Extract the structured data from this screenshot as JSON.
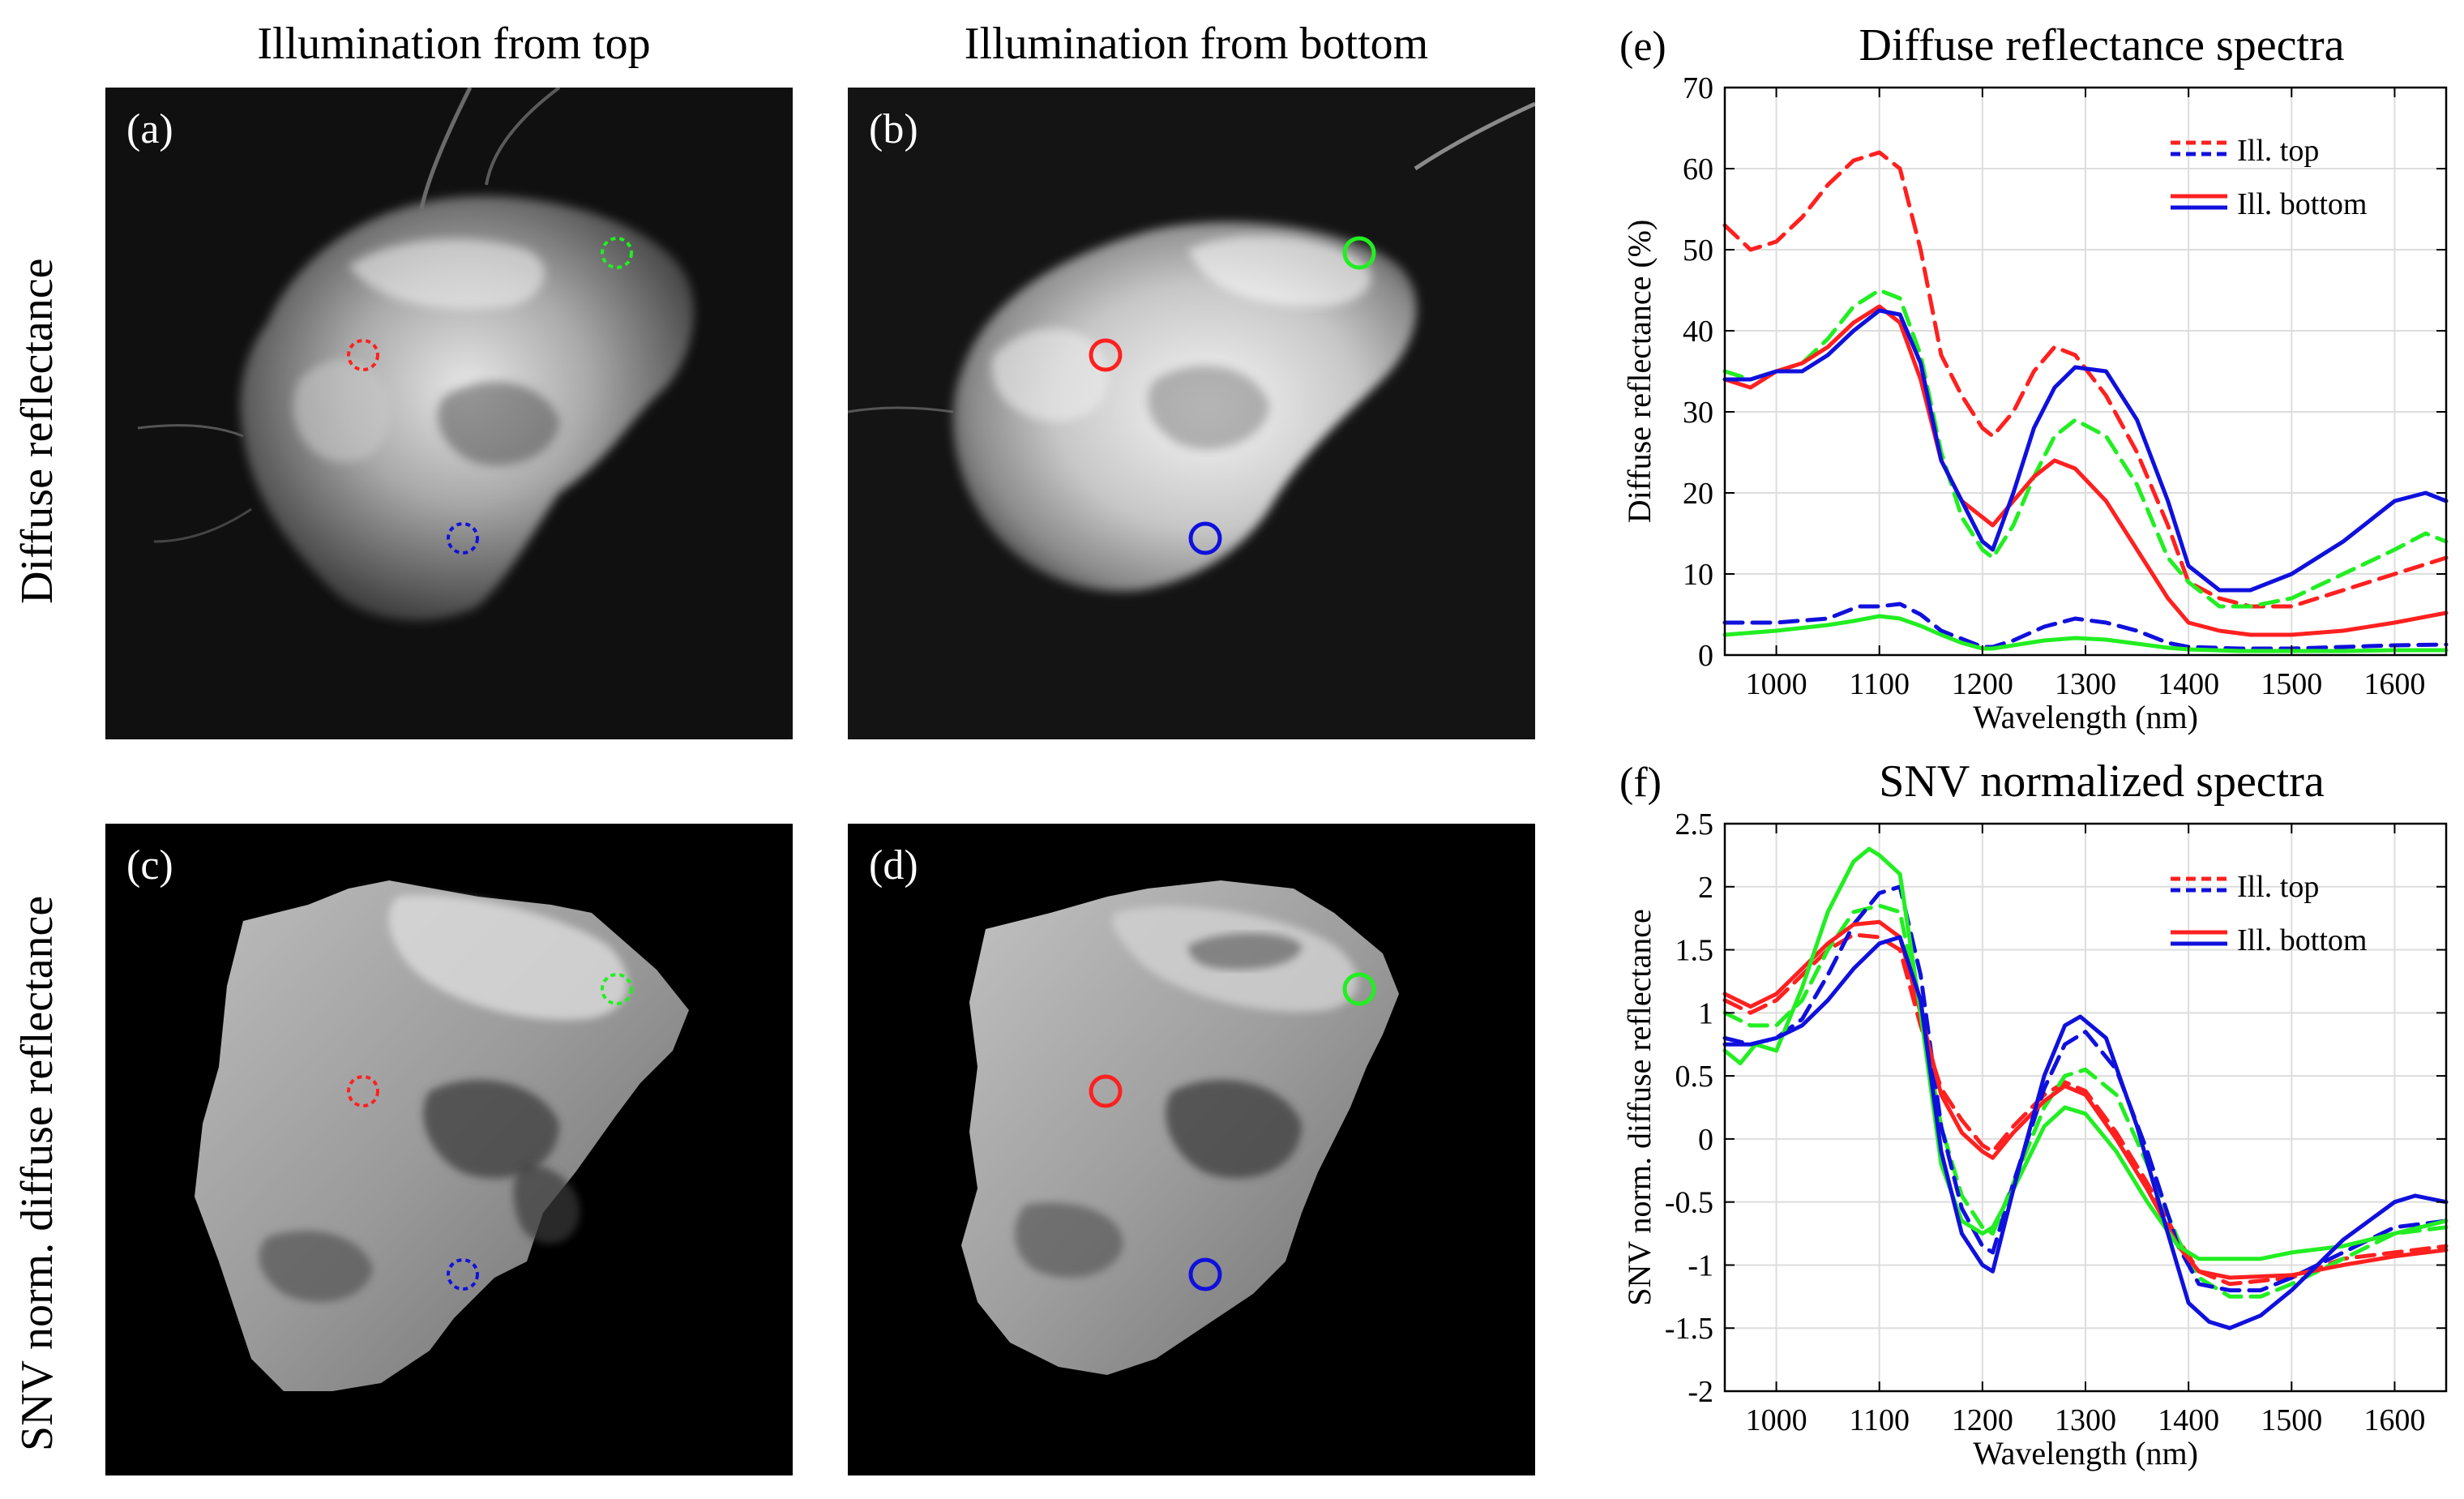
{
  "column_titles": {
    "top": "Illumination from top",
    "bottom": "Illumination from bottom"
  },
  "row_labels": {
    "diffuse": "Diffuse reflectance",
    "snv": "SNV norm. diffuse reflectance"
  },
  "panels": {
    "a": "(a)",
    "b": "(b)",
    "c": "(c)",
    "d": "(d)"
  },
  "colors": {
    "red": "#ff2020",
    "green": "#22ee22",
    "blue": "#1010dd"
  },
  "chart_data": [
    {
      "type": "line",
      "panel_label": "(e)",
      "title": "Diffuse reflectance spectra",
      "xlabel": "Wavelength (nm)",
      "ylabel": "Diffuse reflectance (%)",
      "xlim": [
        950,
        1650
      ],
      "ylim": [
        0,
        70
      ],
      "xticks": [
        1000,
        1100,
        1200,
        1300,
        1400,
        1500,
        1600
      ],
      "yticks": [
        0,
        10,
        20,
        30,
        40,
        50,
        60,
        70
      ],
      "ytick_labels": [
        "0",
        "10",
        "20",
        "30",
        "40",
        "50",
        "60",
        "70"
      ],
      "grid": true,
      "legend": {
        "position": "top-right",
        "entries": [
          "Ill. top",
          "Ill. bottom"
        ]
      },
      "series": [
        {
          "name": "Red, Ill. top",
          "color": "red",
          "dash": true,
          "x": [
            950,
            975,
            1000,
            1025,
            1050,
            1075,
            1100,
            1120,
            1140,
            1160,
            1180,
            1200,
            1210,
            1230,
            1250,
            1270,
            1290,
            1320,
            1350,
            1380,
            1400,
            1430,
            1460,
            1500,
            1550,
            1600,
            1650
          ],
          "y": [
            53,
            50,
            51,
            54,
            58,
            61,
            62,
            60,
            50,
            37,
            32,
            28,
            27,
            30,
            35,
            38,
            37,
            32,
            25,
            16,
            9,
            7,
            6,
            6,
            8,
            10,
            12
          ]
        },
        {
          "name": "Green, Ill. top",
          "color": "green",
          "dash": true,
          "x": [
            950,
            975,
            1000,
            1025,
            1050,
            1075,
            1100,
            1120,
            1140,
            1160,
            1180,
            1200,
            1210,
            1230,
            1250,
            1270,
            1290,
            1320,
            1350,
            1380,
            1400,
            1430,
            1460,
            1500,
            1550,
            1600,
            1630,
            1650
          ],
          "y": [
            35,
            34,
            35,
            36,
            39,
            43,
            45,
            44,
            37,
            25,
            17,
            13,
            12,
            16,
            22,
            27,
            29,
            27,
            21,
            12,
            9,
            6,
            6,
            7,
            10,
            13,
            15,
            14
          ]
        },
        {
          "name": "Blue, Ill. top",
          "color": "blue",
          "dash": true,
          "x": [
            950,
            1000,
            1050,
            1080,
            1100,
            1120,
            1140,
            1160,
            1180,
            1200,
            1210,
            1230,
            1260,
            1290,
            1320,
            1350,
            1380,
            1400,
            1450,
            1500,
            1550,
            1600,
            1650
          ],
          "y": [
            4,
            4,
            4.5,
            6,
            6,
            6.3,
            5,
            3,
            2,
            1,
            1,
            1.8,
            3.5,
            4.5,
            4,
            3,
            1.5,
            1,
            0.8,
            0.8,
            1,
            1.2,
            1.3
          ]
        },
        {
          "name": "Red, Ill. bottom",
          "color": "red",
          "dash": false,
          "x": [
            950,
            975,
            1000,
            1025,
            1050,
            1075,
            1100,
            1120,
            1140,
            1160,
            1180,
            1200,
            1210,
            1230,
            1250,
            1270,
            1290,
            1320,
            1350,
            1380,
            1400,
            1430,
            1460,
            1500,
            1550,
            1600,
            1650
          ],
          "y": [
            34,
            33,
            35,
            36,
            38,
            41,
            43,
            41,
            34,
            24,
            19,
            17,
            16,
            19,
            22,
            24,
            23,
            19,
            13,
            7,
            4,
            3,
            2.5,
            2.5,
            3,
            4,
            5.2
          ]
        },
        {
          "name": "Green, Ill. bottom",
          "color": "green",
          "dash": false,
          "x": [
            950,
            1000,
            1050,
            1075,
            1100,
            1120,
            1140,
            1160,
            1180,
            1200,
            1210,
            1230,
            1260,
            1290,
            1320,
            1350,
            1380,
            1400,
            1450,
            1500,
            1550,
            1600,
            1650
          ],
          "y": [
            2.5,
            3,
            3.7,
            4.2,
            4.8,
            4.5,
            3.6,
            2.5,
            1.5,
            0.8,
            0.8,
            1.2,
            1.8,
            2.1,
            1.9,
            1.4,
            0.9,
            0.7,
            0.5,
            0.5,
            0.5,
            0.6,
            0.6
          ]
        },
        {
          "name": "Blue, Ill. bottom",
          "color": "blue",
          "dash": false,
          "x": [
            950,
            975,
            1000,
            1025,
            1050,
            1075,
            1100,
            1120,
            1140,
            1160,
            1180,
            1200,
            1210,
            1230,
            1250,
            1270,
            1290,
            1320,
            1350,
            1380,
            1400,
            1430,
            1460,
            1500,
            1550,
            1600,
            1630,
            1650
          ],
          "y": [
            34,
            34,
            35,
            35,
            37,
            40,
            42.5,
            42,
            36,
            24,
            19,
            14,
            13,
            20,
            28,
            33,
            35.5,
            35,
            29,
            19,
            11,
            8,
            8,
            10,
            14,
            19,
            20,
            19
          ]
        }
      ]
    },
    {
      "type": "line",
      "panel_label": "(f)",
      "title": "SNV normalized spectra",
      "xlabel": "Wavelength (nm)",
      "ylabel": "SNV norm. diffuse reflectance",
      "xlim": [
        950,
        1650
      ],
      "ylim": [
        -2,
        2.5
      ],
      "xticks": [
        1000,
        1100,
        1200,
        1300,
        1400,
        1500,
        1600
      ],
      "yticks": [
        -2,
        -1.5,
        -1,
        -0.5,
        0,
        0.5,
        1,
        1.5,
        2,
        2.5
      ],
      "ytick_labels": [
        "-2",
        "-1.5",
        "-1",
        "-0.5",
        "0",
        "0.5",
        "1",
        "1.5",
        "2",
        "2.5"
      ],
      "grid": true,
      "legend": {
        "position": "top-right",
        "entries": [
          "Ill. top",
          "Ill. bottom"
        ]
      },
      "series": [
        {
          "name": "Red, Ill. top",
          "color": "red",
          "dash": true,
          "x": [
            950,
            975,
            1000,
            1025,
            1050,
            1075,
            1100,
            1120,
            1140,
            1160,
            1180,
            1200,
            1210,
            1230,
            1260,
            1280,
            1300,
            1330,
            1360,
            1390,
            1410,
            1440,
            1500,
            1550,
            1600,
            1650
          ],
          "y": [
            1.1,
            1.0,
            1.1,
            1.3,
            1.5,
            1.62,
            1.6,
            1.5,
            0.9,
            0.4,
            0.15,
            -0.05,
            -0.1,
            0.1,
            0.35,
            0.45,
            0.38,
            0.05,
            -0.35,
            -0.8,
            -1.05,
            -1.15,
            -1.1,
            -0.95,
            -0.9,
            -0.85
          ]
        },
        {
          "name": "Green, Ill. top",
          "color": "green",
          "dash": true,
          "x": [
            950,
            975,
            1000,
            1025,
            1050,
            1075,
            1100,
            1120,
            1140,
            1160,
            1180,
            1200,
            1210,
            1230,
            1260,
            1280,
            1300,
            1330,
            1360,
            1390,
            1410,
            1440,
            1470,
            1500,
            1550,
            1600,
            1650
          ],
          "y": [
            1.0,
            0.9,
            0.9,
            1.1,
            1.5,
            1.8,
            1.85,
            1.8,
            1.0,
            0.1,
            -0.45,
            -0.7,
            -0.75,
            -0.35,
            0.25,
            0.5,
            0.55,
            0.35,
            -0.2,
            -0.8,
            -1.1,
            -1.25,
            -1.25,
            -1.15,
            -0.95,
            -0.75,
            -0.7
          ]
        },
        {
          "name": "Blue, Ill. top",
          "color": "blue",
          "dash": true,
          "x": [
            950,
            975,
            1000,
            1025,
            1050,
            1075,
            1100,
            1120,
            1140,
            1160,
            1180,
            1200,
            1210,
            1230,
            1260,
            1280,
            1300,
            1330,
            1360,
            1390,
            1410,
            1440,
            1470,
            1500,
            1550,
            1600,
            1650
          ],
          "y": [
            0.8,
            0.75,
            0.8,
            0.95,
            1.3,
            1.7,
            1.95,
            2.0,
            1.3,
            0.1,
            -0.55,
            -0.85,
            -0.9,
            -0.35,
            0.4,
            0.75,
            0.85,
            0.55,
            -0.1,
            -0.85,
            -1.15,
            -1.2,
            -1.2,
            -1.1,
            -0.9,
            -0.7,
            -0.65
          ]
        },
        {
          "name": "Red, Ill. bottom",
          "color": "red",
          "dash": false,
          "x": [
            950,
            975,
            1000,
            1025,
            1050,
            1075,
            1100,
            1120,
            1140,
            1160,
            1180,
            1200,
            1210,
            1230,
            1260,
            1280,
            1300,
            1330,
            1360,
            1390,
            1410,
            1440,
            1500,
            1550,
            1600,
            1650
          ],
          "y": [
            1.15,
            1.05,
            1.15,
            1.35,
            1.55,
            1.7,
            1.72,
            1.6,
            1.0,
            0.35,
            0.05,
            -0.1,
            -0.15,
            0.05,
            0.3,
            0.42,
            0.35,
            0.0,
            -0.4,
            -0.85,
            -1.05,
            -1.1,
            -1.08,
            -1.0,
            -0.93,
            -0.88
          ]
        },
        {
          "name": "Green, Ill. bottom",
          "color": "green",
          "dash": false,
          "x": [
            950,
            965,
            980,
            1000,
            1025,
            1050,
            1075,
            1090,
            1100,
            1120,
            1140,
            1160,
            1180,
            1200,
            1210,
            1230,
            1260,
            1280,
            1300,
            1330,
            1360,
            1390,
            1410,
            1440,
            1470,
            1500,
            1550,
            1600,
            1650
          ],
          "y": [
            0.7,
            0.6,
            0.75,
            0.7,
            1.2,
            1.8,
            2.2,
            2.3,
            2.25,
            2.1,
            1.0,
            -0.2,
            -0.65,
            -0.75,
            -0.7,
            -0.4,
            0.1,
            0.25,
            0.2,
            -0.1,
            -0.5,
            -0.85,
            -0.95,
            -0.95,
            -0.95,
            -0.9,
            -0.85,
            -0.75,
            -0.65
          ]
        },
        {
          "name": "Blue, Ill. bottom",
          "color": "blue",
          "dash": false,
          "x": [
            950,
            975,
            1000,
            1025,
            1050,
            1075,
            1100,
            1120,
            1140,
            1160,
            1180,
            1200,
            1210,
            1230,
            1260,
            1280,
            1295,
            1320,
            1350,
            1380,
            1400,
            1420,
            1440,
            1470,
            1500,
            1550,
            1600,
            1620,
            1650
          ],
          "y": [
            0.75,
            0.75,
            0.8,
            0.9,
            1.1,
            1.35,
            1.55,
            1.6,
            1.1,
            -0.1,
            -0.75,
            -1.0,
            -1.05,
            -0.4,
            0.5,
            0.9,
            0.97,
            0.8,
            0.1,
            -0.75,
            -1.3,
            -1.45,
            -1.5,
            -1.4,
            -1.2,
            -0.8,
            -0.5,
            -0.45,
            -0.5
          ]
        }
      ]
    }
  ]
}
